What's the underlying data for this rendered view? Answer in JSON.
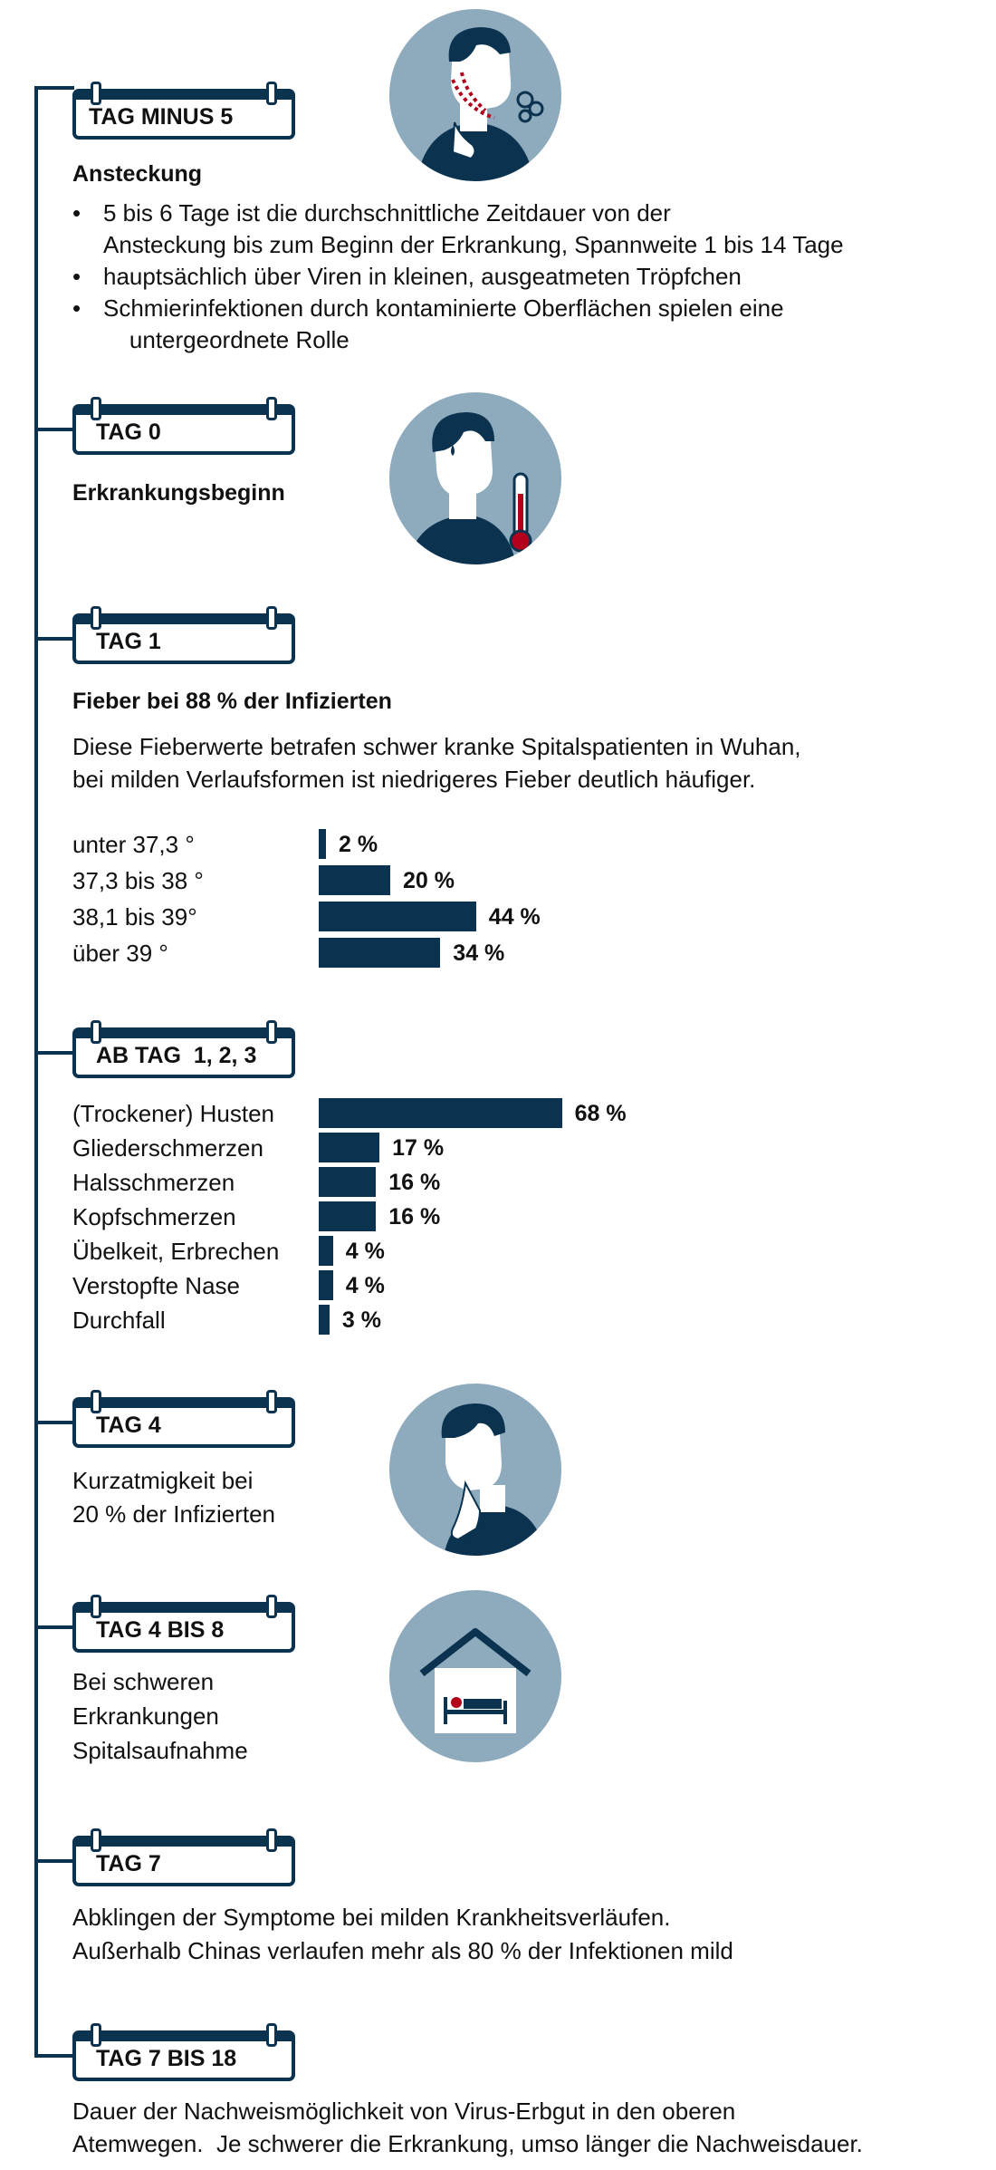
{
  "sections": {
    "s1": {
      "badge": "TAG MINUS 5",
      "title": "Ansteckung",
      "bullets": [
        [
          "5 bis 6 Tage ist die durchschnittliche Zeitdauer von der",
          "Ansteckung bis zum Beginn der Erkrankung, Spannweite 1 bis 14 Tage"
        ],
        [
          "hauptsächlich über Viren in kleinen, ausgeatmeten Tröpfchen"
        ],
        [
          "Schmierinfektionen durch kontaminierte Oberflächen spielen eine",
          "    untergeordnete Rolle"
        ]
      ],
      "icon": "coughing-person-icon"
    },
    "s2": {
      "badge": "TAG 0",
      "title": "Erkrankungsbeginn",
      "icon": "fever-person-thermometer-icon"
    },
    "s3": {
      "badge": "TAG 1",
      "title": "Fieber bei 88 % der Infizierten",
      "text": [
        "Diese Fieberwerte betrafen schwer kranke Spitalspatienten in Wuhan,",
        "bei milden Verlaufsformen ist niedrigeres Fieber deutlich häufiger."
      ]
    },
    "s4": {
      "badge": "AB TAG  1, 2, 3"
    },
    "s5": {
      "badge": "TAG 4",
      "text": [
        "Kurzatmigkeit bei",
        "20 % der Infizierten"
      ],
      "icon": "shortness-of-breath-person-icon"
    },
    "s6": {
      "badge": "TAG 4 BIS 8",
      "text": [
        "Bei schweren",
        "Erkrankungen",
        "Spitalsaufnahme"
      ],
      "icon": "hospital-bed-house-icon"
    },
    "s7": {
      "badge": "TAG 7",
      "text": [
        "Abklingen der Symptome bei milden Krankheitsverläufen.",
        "Außerhalb Chinas verlaufen mehr als 80 % der Infektionen mild"
      ]
    },
    "s8": {
      "badge": "TAG 7 BIS 18",
      "text": [
        "Dauer der Nachweismöglichkeit von Virus-Erbgut in den oberen",
        "Atemwegen.  Je schwerer die Erkrankung, umso länger die Nachweisdauer."
      ]
    }
  },
  "colors": {
    "accent": "#0b3350",
    "icon_bg": "#8eaabd",
    "highlight": "#b3001b"
  },
  "chart_data": [
    {
      "type": "bar",
      "orientation": "horizontal",
      "categories": [
        "unter 37,3 °",
        "37,3 bis 38 °",
        "38,1 bis 39°",
        "über 39 °"
      ],
      "values": [
        2,
        20,
        44,
        34
      ],
      "value_labels": [
        "2 %",
        "20 %",
        "44 %",
        "34 %"
      ],
      "unit": "%"
    },
    {
      "type": "bar",
      "orientation": "horizontal",
      "categories": [
        "(Trockener) Husten",
        "Gliederschmerzen",
        "Halsschmerzen",
        "Kopfschmerzen",
        "Übelkeit, Erbrechen",
        "Verstopfte Nase",
        "Durchfall"
      ],
      "values": [
        68,
        17,
        16,
        16,
        4,
        4,
        3
      ],
      "value_labels": [
        "68 %",
        "17 %",
        "16 %",
        "16 %",
        "4 %",
        "4 %",
        "3 %"
      ],
      "unit": "%"
    }
  ]
}
